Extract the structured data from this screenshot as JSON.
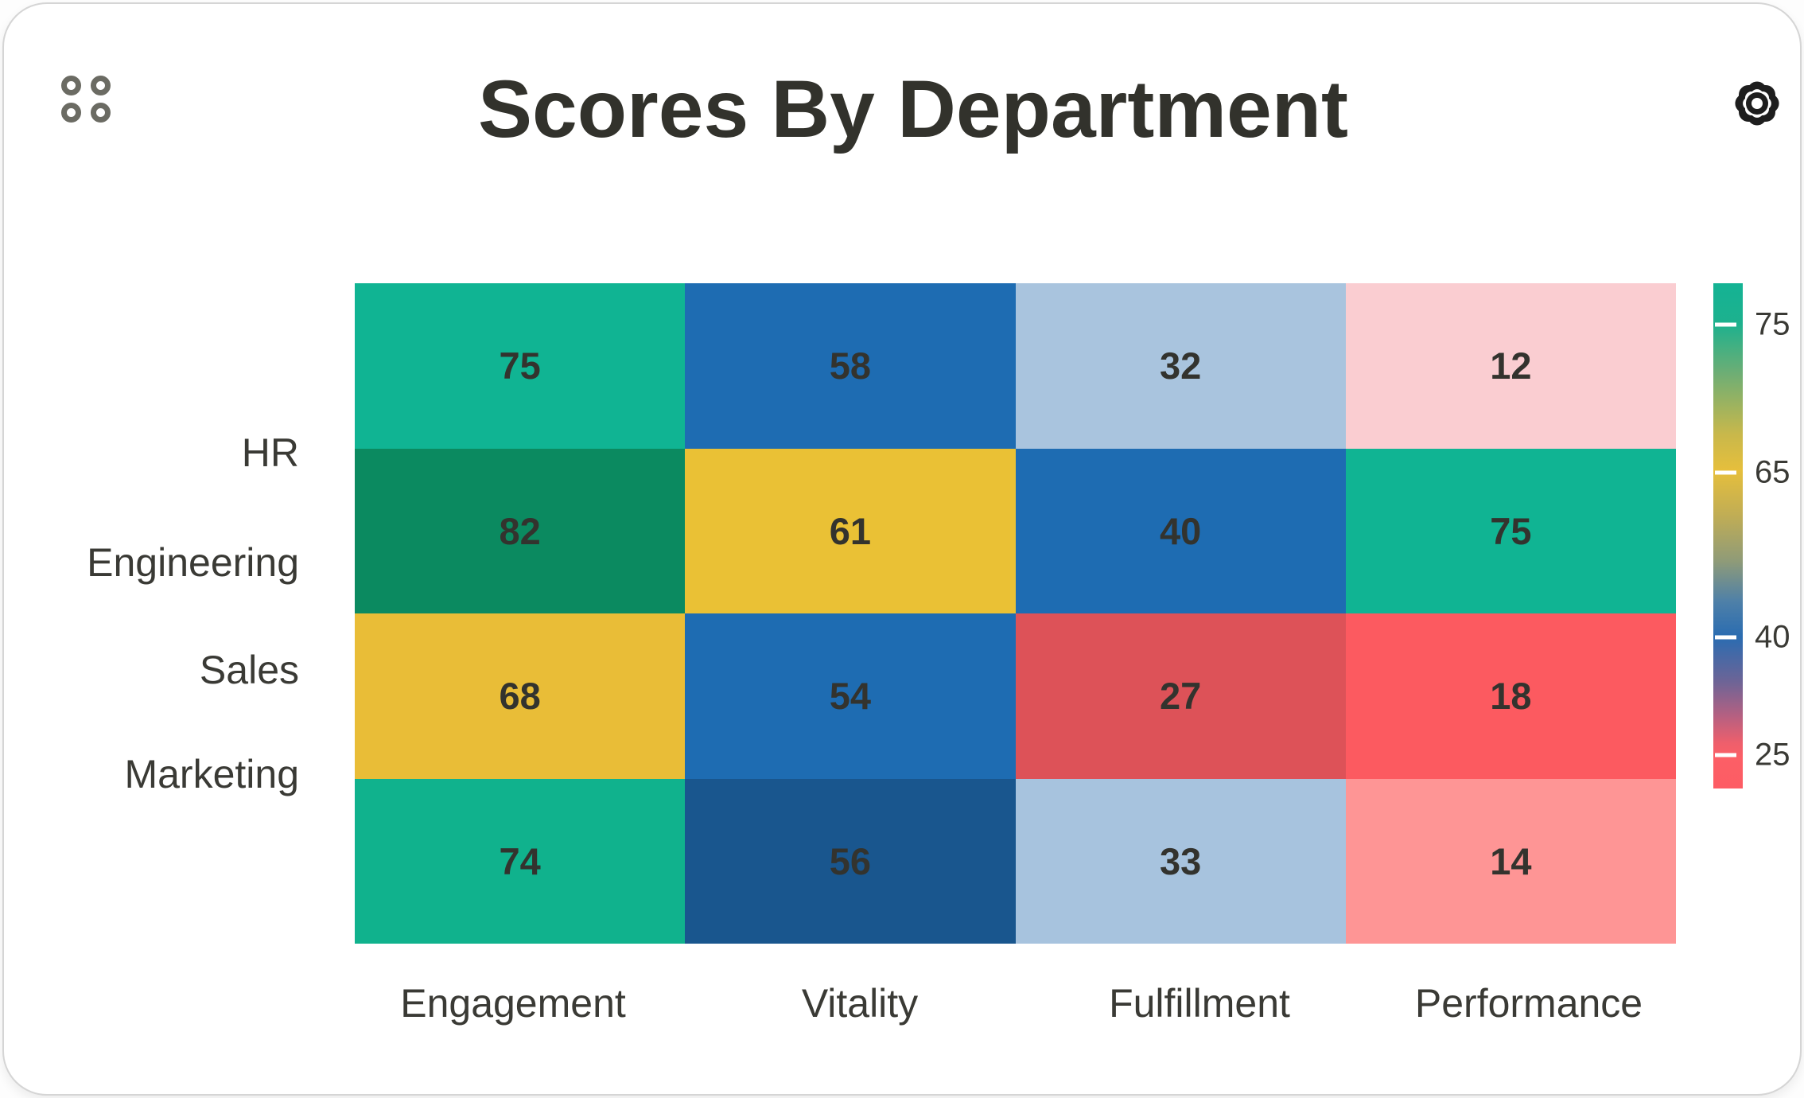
{
  "card": {
    "title": "Scores By Department"
  },
  "icons": {
    "app_grid": "app-grid-handle",
    "settings": "settings-gear"
  },
  "colors": {
    "title_text": "#32322c",
    "label_text": "#3a3a35",
    "icon_gray": "#6b6b63",
    "gear_dark": "#1e1e1e",
    "card_background": "#ffffff"
  },
  "chart_data": {
    "type": "heatmap",
    "title": "Scores By Department",
    "rows": [
      "HR",
      "Engineering",
      "Sales",
      "Marketing"
    ],
    "columns": [
      "Engagement",
      "Vitality",
      "Fulfillment",
      "Performance"
    ],
    "values": [
      [
        75,
        58,
        32,
        12
      ],
      [
        82,
        61,
        40,
        75
      ],
      [
        68,
        54,
        27,
        18
      ],
      [
        74,
        56,
        33,
        14
      ]
    ],
    "cell_colors": [
      [
        "#10b493",
        "#1e6cb2",
        "#a9c4de",
        "#facdd1"
      ],
      [
        "#0b8a60",
        "#eac135",
        "#1e6cb2",
        "#10b493"
      ],
      [
        "#e9bd37",
        "#1e6cb2",
        "#dd5258",
        "#fc5a60"
      ],
      [
        "#10b28d",
        "#19568e",
        "#a7c3de",
        "#fe9595"
      ]
    ],
    "value_text_color": "#33332e",
    "grid_lines": false,
    "legend": {
      "position": "right",
      "ticks": [
        "75",
        "65",
        "40",
        "25"
      ],
      "tick_positions_pct": [
        8.2,
        37.5,
        70.0,
        93.4
      ],
      "gradient_top_to_bottom": [
        {
          "pos": 0,
          "color": "#14b394"
        },
        {
          "pos": 8,
          "color": "#1db18e"
        },
        {
          "pos": 18,
          "color": "#6fae74"
        },
        {
          "pos": 30,
          "color": "#c9b84b"
        },
        {
          "pos": 37,
          "color": "#e6bf3c"
        },
        {
          "pos": 46,
          "color": "#c0ad55"
        },
        {
          "pos": 55,
          "color": "#8f9b78"
        },
        {
          "pos": 63,
          "color": "#4e80a8"
        },
        {
          "pos": 70,
          "color": "#2a6cb1"
        },
        {
          "pos": 79,
          "color": "#6e6496"
        },
        {
          "pos": 86,
          "color": "#b96080"
        },
        {
          "pos": 91,
          "color": "#ee5f6c"
        },
        {
          "pos": 94,
          "color": "#fc5f66"
        },
        {
          "pos": 100,
          "color": "#fd5c64"
        }
      ]
    }
  }
}
